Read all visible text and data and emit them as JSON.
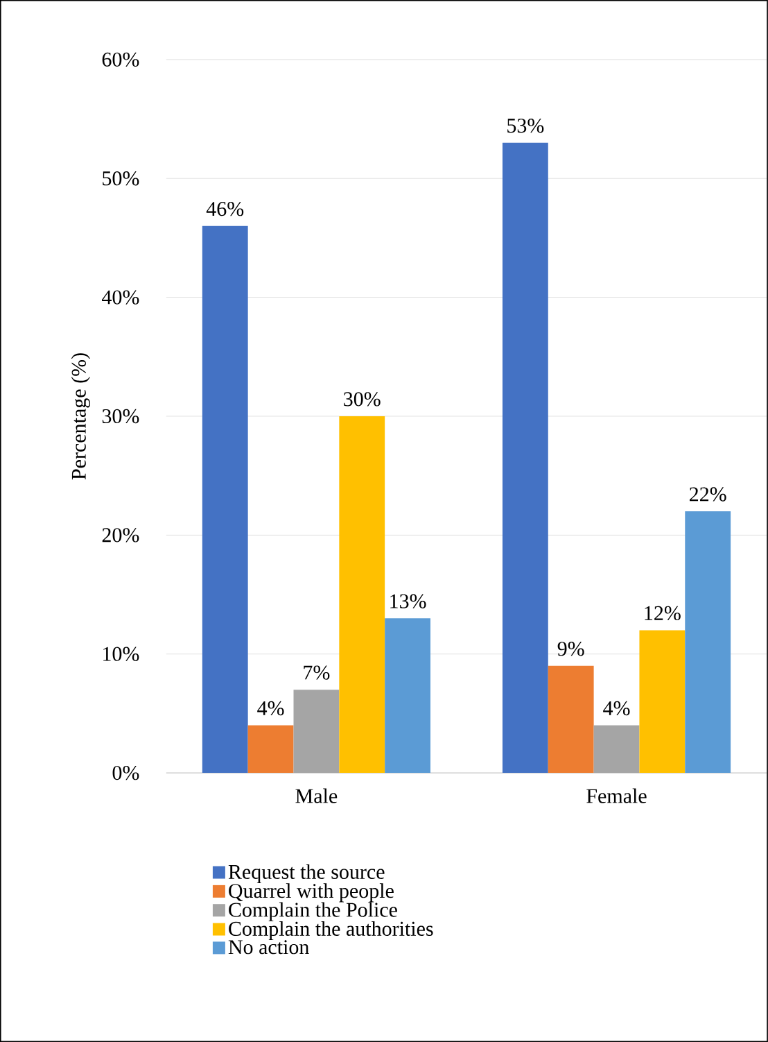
{
  "chart_data": {
    "type": "bar",
    "ylabel": "Percentage (%)",
    "categories": [
      "Male",
      "Female"
    ],
    "series": [
      {
        "name": "Request the source",
        "color": "#4472c4",
        "values": [
          46,
          53
        ],
        "value_labels": [
          "46%",
          "53%"
        ]
      },
      {
        "name": "Quarrel with people",
        "color": "#ed7d31",
        "values": [
          4,
          9
        ],
        "value_labels": [
          "4%",
          "9%"
        ]
      },
      {
        "name": "Complain the Police",
        "color": "#a5a5a5",
        "values": [
          7,
          4
        ],
        "value_labels": [
          "7%",
          "4%"
        ]
      },
      {
        "name": "Complain the authorities",
        "color": "#ffc000",
        "values": [
          30,
          12
        ],
        "value_labels": [
          "30%",
          "12%"
        ]
      },
      {
        "name": "No action",
        "color": "#5b9bd5",
        "values": [
          13,
          22
        ],
        "value_labels": [
          "13%",
          "22%"
        ]
      }
    ],
    "ylim": [
      0,
      60
    ],
    "yticks": [
      {
        "value": 0,
        "label": "0%"
      },
      {
        "value": 10,
        "label": "10%"
      },
      {
        "value": 20,
        "label": "20%"
      },
      {
        "value": 30,
        "label": "30%"
      },
      {
        "value": 40,
        "label": "40%"
      },
      {
        "value": 50,
        "label": "50%"
      },
      {
        "value": 60,
        "label": "60%"
      }
    ],
    "grid": "y",
    "legend": "bottom"
  }
}
